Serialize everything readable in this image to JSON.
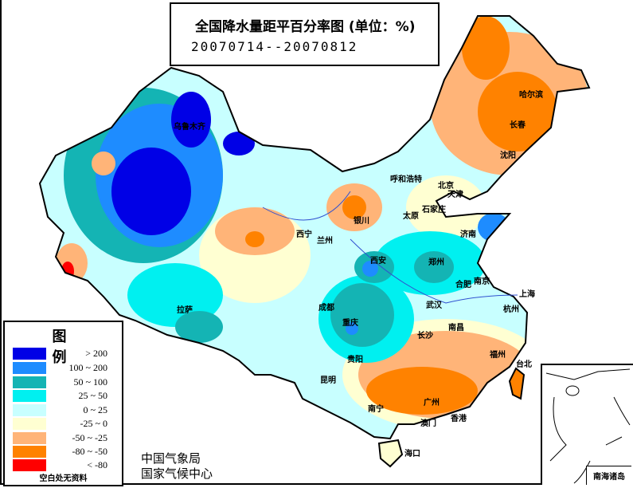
{
  "header": {
    "title": "全国降水量距平百分率图 (单位：%)",
    "date_range": "20070714--20070812"
  },
  "legend": {
    "title": "图 例",
    "items": [
      {
        "label": "> 200",
        "color": "#0000e6"
      },
      {
        "label": "100 ~ 200",
        "color": "#1e8cff"
      },
      {
        "label": "50 ~ 100",
        "color": "#14b4b4"
      },
      {
        "label": "25 ~ 50",
        "color": "#00f0f0"
      },
      {
        "label": "0 ~ 25",
        "color": "#c8ffff"
      },
      {
        "label": "-25 ~ 0",
        "color": "#ffffd2"
      },
      {
        "label": "-50 ~ -25",
        "color": "#ffb478"
      },
      {
        "label": "-80 ~ -50",
        "color": "#ff8200"
      },
      {
        "label": "< -80",
        "color": "#ff0000"
      }
    ],
    "note": "空白处无资料"
  },
  "organization": {
    "line1": "中国气象局",
    "line2": "国家气候中心"
  },
  "inset": {
    "label": "南海诸岛"
  },
  "cities": [
    "乌鲁木齐",
    "呼和浩特",
    "北京",
    "天津",
    "石家庄",
    "太原",
    "济南",
    "银川",
    "兰州",
    "西宁",
    "西安",
    "郑州",
    "合肥",
    "南京",
    "上海",
    "武汉",
    "杭州",
    "成都",
    "重庆",
    "长沙",
    "南昌",
    "福州",
    "台北",
    "贵阳",
    "昆明",
    "南宁",
    "广州",
    "香港",
    "澳门",
    "海口",
    "拉萨",
    "哈尔滨",
    "长春",
    "沈阳"
  ]
}
